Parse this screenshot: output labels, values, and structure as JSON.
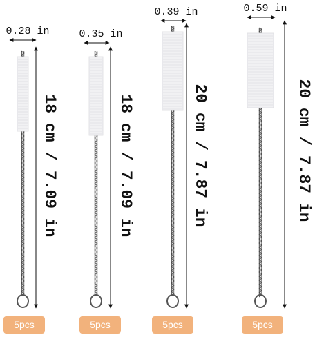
{
  "brushes": [
    {
      "width": "0.28 in",
      "length": "18 cm / 7.09 in",
      "quantity": "5pcs"
    },
    {
      "width": "0.35 in",
      "length": "18 cm / 7.09 in",
      "quantity": "5pcs"
    },
    {
      "width": "0.39 in",
      "length": "20 cm / 7.87 in",
      "quantity": "5pcs"
    },
    {
      "width": "0.59 in",
      "length": "20 cm / 7.87 in",
      "quantity": "5pcs"
    }
  ]
}
